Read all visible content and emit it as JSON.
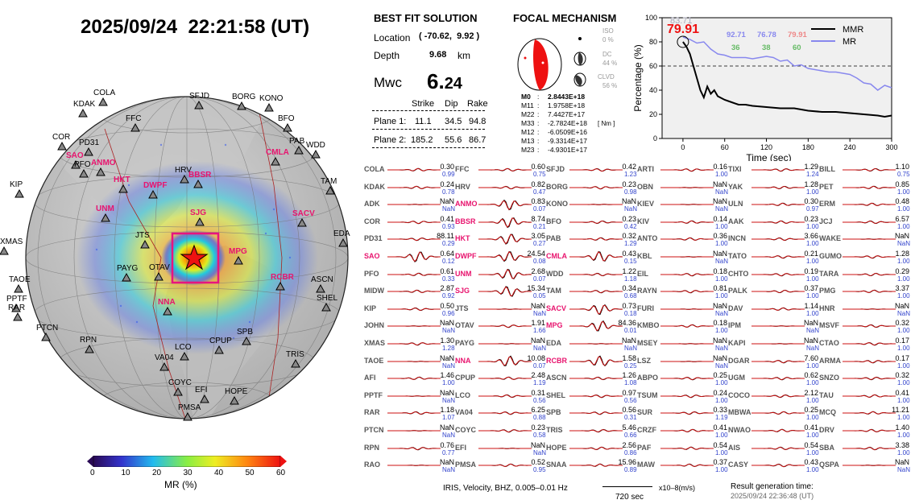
{
  "header": {
    "timestamp": "2025/09/24  22:21:58 (UT)"
  },
  "map": {
    "stations": [
      {
        "code": "COLA",
        "x": 128,
        "y": 128,
        "hi": false
      },
      {
        "code": "KDAK",
        "x": 103,
        "y": 142,
        "hi": false
      },
      {
        "code": "SFJD",
        "x": 247,
        "y": 132,
        "hi": false
      },
      {
        "code": "BORG",
        "x": 300,
        "y": 133,
        "hi": false
      },
      {
        "code": "KONO",
        "x": 334,
        "y": 135,
        "hi": false
      },
      {
        "code": "FFC",
        "x": 168,
        "y": 160,
        "hi": false
      },
      {
        "code": "BFO",
        "x": 357,
        "y": 160,
        "hi": false
      },
      {
        "code": "COR",
        "x": 77,
        "y": 183,
        "hi": false
      },
      {
        "code": "PD31",
        "x": 110,
        "y": 190,
        "hi": false
      },
      {
        "code": "PAB",
        "x": 371,
        "y": 188,
        "hi": false
      },
      {
        "code": "WDD",
        "x": 392,
        "y": 193,
        "hi": false
      },
      {
        "code": "SAO",
        "x": 94,
        "y": 206,
        "hi": true
      },
      {
        "code": "PFO",
        "x": 104,
        "y": 217,
        "hi": false
      },
      {
        "code": "ANMO",
        "x": 125,
        "y": 215,
        "hi": true
      },
      {
        "code": "HRV",
        "x": 229,
        "y": 224,
        "hi": false
      },
      {
        "code": "CMLA",
        "x": 342,
        "y": 202,
        "hi": true
      },
      {
        "code": "HKT",
        "x": 153,
        "y": 236,
        "hi": true
      },
      {
        "code": "BBSR",
        "x": 246,
        "y": 230,
        "hi": true
      },
      {
        "code": "KIP",
        "x": 24,
        "y": 242,
        "hi": false
      },
      {
        "code": "TAM",
        "x": 410,
        "y": 238,
        "hi": false
      },
      {
        "code": "DWPF",
        "x": 190,
        "y": 243,
        "hi": true
      },
      {
        "code": "SJG",
        "x": 248,
        "y": 277,
        "hi": true
      },
      {
        "code": "UNM",
        "x": 131,
        "y": 272,
        "hi": true
      },
      {
        "code": "SACV",
        "x": 375,
        "y": 278,
        "hi": true
      },
      {
        "code": "EDA",
        "x": 426,
        "y": 303,
        "hi": false
      },
      {
        "code": "JTS",
        "x": 180,
        "y": 305,
        "hi": false
      },
      {
        "code": "XMAS",
        "x": 5,
        "y": 313,
        "hi": false
      },
      {
        "code": "MPG",
        "x": 296,
        "y": 325,
        "hi": true
      },
      {
        "code": "PAYG",
        "x": 157,
        "y": 346,
        "hi": false
      },
      {
        "code": "OTAV",
        "x": 197,
        "y": 345,
        "hi": false
      },
      {
        "code": "RCBR",
        "x": 348,
        "y": 357,
        "hi": true
      },
      {
        "code": "TAOE",
        "x": 23,
        "y": 360,
        "hi": false
      },
      {
        "code": "ASCN",
        "x": 398,
        "y": 360,
        "hi": false
      },
      {
        "code": "SHEL",
        "x": 405,
        "y": 383,
        "hi": false
      },
      {
        "code": "PPTF",
        "x": 20,
        "y": 384,
        "hi": false
      },
      {
        "code": "RAR",
        "x": 22,
        "y": 395,
        "hi": false
      },
      {
        "code": "NNA",
        "x": 208,
        "y": 388,
        "hi": true
      },
      {
        "code": "PTCN",
        "x": 57,
        "y": 420,
        "hi": false
      },
      {
        "code": "SPB",
        "x": 306,
        "y": 425,
        "hi": false
      },
      {
        "code": "LCO",
        "x": 229,
        "y": 444,
        "hi": false
      },
      {
        "code": "CPUP",
        "x": 272,
        "y": 436,
        "hi": false
      },
      {
        "code": "RPN",
        "x": 111,
        "y": 435,
        "hi": false
      },
      {
        "code": "TRIS",
        "x": 367,
        "y": 453,
        "hi": false
      },
      {
        "code": "VA04",
        "x": 204,
        "y": 457,
        "hi": false
      },
      {
        "code": "COYC",
        "x": 221,
        "y": 488,
        "hi": false
      },
      {
        "code": "EFI",
        "x": 254,
        "y": 497,
        "hi": false
      },
      {
        "code": "HOPE",
        "x": 291,
        "y": 499,
        "hi": false
      },
      {
        "code": "PMSA",
        "x": 233,
        "y": 519,
        "hi": false
      }
    ],
    "colorbar": {
      "label": "MR (%)",
      "ticks": [
        "0",
        "10",
        "20",
        "30",
        "40",
        "50",
        "60"
      ]
    }
  },
  "solution": {
    "title": "BEST FIT SOLUTION",
    "location_label": "Location",
    "location_value": "( -70.62,  9.92 )",
    "depth_label": "Depth",
    "depth_value": "9.68",
    "depth_unit": "km",
    "mag_label": "Mwc",
    "mag_int": "6.",
    "mag_dec": "24",
    "col_strike": "Strike",
    "col_dip": "Dip",
    "col_rake": "Rake",
    "plane1_label": "Plane 1:",
    "plane1": [
      "11.1",
      "34.5",
      "94.8"
    ],
    "plane2_label": "Plane 2:",
    "plane2": [
      "185.2",
      "55.6",
      "86.7"
    ]
  },
  "focal": {
    "title": "FOCAL MECHANISM",
    "iso_label": "ISO",
    "iso_value": "0 %",
    "dc_label": "DC",
    "dc_value": "44 %",
    "clvd_label": "CLVD",
    "clvd_value": "56 %",
    "moments": [
      {
        "k": "M0",
        "sep": ":",
        "v": "2.8443E+18"
      },
      {
        "k": "M11",
        "sep": ":",
        "v": "1.9758E+18"
      },
      {
        "k": "M22",
        "sep": ":",
        "v": "7.4427E+17"
      },
      {
        "k": "M33",
        "sep": ":",
        "v": "-2.7824E+18"
      },
      {
        "k": "M12",
        "sep": ":",
        "v": "-6.0509E+16"
      },
      {
        "k": "M13",
        "sep": ":",
        "v": "-9.3314E+17"
      },
      {
        "k": "M23",
        "sep": ":",
        "v": "-4.9301E+17"
      }
    ],
    "unit": "[ Nm ]"
  },
  "mr_chart": {
    "ylabel": "Percentage (%)",
    "xlabel": "Time (sec)",
    "xticks": [
      "0",
      "60",
      "120",
      "180",
      "240",
      "300"
    ],
    "yticks": [
      "0",
      "20",
      "40",
      "60",
      "80",
      "100"
    ],
    "legend": [
      {
        "name": "MMR",
        "color": "#000000"
      },
      {
        "name": "MR",
        "color": "#8888ee"
      }
    ],
    "big_value": "79.91",
    "faded_value": "83.71",
    "labels": [
      {
        "top": "92.71",
        "bot": "36",
        "c": "#8888ee"
      },
      {
        "top": "76.78",
        "bot": "38",
        "c": "#8888ee"
      },
      {
        "top": "79.91",
        "bot": "60",
        "c": "#ee8888"
      }
    ]
  },
  "footer": {
    "left": "IRIS, Velocity,  BHZ, 0.005–0.01 Hz",
    "scale": "720 sec",
    "unit": "x10–8(m/s)",
    "result_label": "Result generation time:",
    "result_time": "2025/09/24 22:36:48 (UT)"
  },
  "waveforms": [
    [
      [
        "COLA",
        "0.30",
        "0.99",
        0
      ],
      [
        "KDAK",
        "0.24",
        "0.78",
        0
      ],
      [
        "ADK",
        "NaN",
        "NaN",
        0
      ],
      [
        "COR",
        "0.41",
        "0.93",
        0
      ],
      [
        "PD31",
        "88.11",
        "0.29",
        0
      ],
      [
        "SAO",
        "0.64",
        "0.12",
        1
      ],
      [
        "PFO",
        "0.61",
        "0.33",
        0
      ],
      [
        "MIDW",
        "2.87",
        "0.92",
        0
      ],
      [
        "KIP",
        "0.50",
        "0.96",
        0
      ],
      [
        "JOHN",
        "NaN",
        "NaN",
        0
      ],
      [
        "XMAS",
        "1.30",
        "1.28",
        0
      ],
      [
        "TAOE",
        "NaN",
        "NaN",
        0
      ],
      [
        "AFI",
        "1.46",
        "1.00",
        0
      ],
      [
        "PPTF",
        "NaN",
        "NaN",
        0
      ],
      [
        "RAR",
        "1.18",
        "1.07",
        0
      ],
      [
        "PTCN",
        "NaN",
        "NaN",
        0
      ],
      [
        "RPN",
        "0.76",
        "0.77",
        0
      ],
      [
        "RAO",
        "NaN",
        "NaN",
        0
      ]
    ],
    [
      [
        "FFC",
        "0.60",
        "0.75",
        0
      ],
      [
        "HRV",
        "0.82",
        "0.47",
        0
      ],
      [
        "ANMO",
        "0.83",
        "0.07",
        1
      ],
      [
        "BBSR",
        "8.74",
        "0.21",
        1
      ],
      [
        "HKT",
        "3.05",
        "0.27",
        1
      ],
      [
        "DWPF",
        "24.54",
        "0.08",
        1
      ],
      [
        "UNM",
        "2.68",
        "0.07",
        1
      ],
      [
        "SJG",
        "15.34",
        "0.05",
        1
      ],
      [
        "JTS",
        "NaN",
        "NaN",
        0
      ],
      [
        "OTAV",
        "1.91",
        "1.66",
        0
      ],
      [
        "PAYG",
        "NaN",
        "NaN",
        0
      ],
      [
        "NNA",
        "10.08",
        "0.07",
        1
      ],
      [
        "CPUP",
        "2.48",
        "1.19",
        0
      ],
      [
        "LCO",
        "0.31",
        "0.56",
        0
      ],
      [
        "VA04",
        "6.25",
        "0.88",
        0
      ],
      [
        "COYC",
        "0.23",
        "0.58",
        0
      ],
      [
        "EFI",
        "NaN",
        "NaN",
        0
      ],
      [
        "PMSA",
        "0.52",
        "0.95",
        0
      ]
    ],
    [
      [
        "SFJD",
        "0.42",
        "1.23",
        0
      ],
      [
        "BORG",
        "0.23",
        "0.98",
        0
      ],
      [
        "KONO",
        "NaN",
        "NaN",
        0
      ],
      [
        "BFO",
        "0.23",
        "0.42",
        0
      ],
      [
        "PAB",
        "0.32",
        "1.29",
        0
      ],
      [
        "CMLA",
        "0.43",
        "0.15",
        1
      ],
      [
        "WDD",
        "1.22",
        "1.18",
        0
      ],
      [
        "TAM",
        "0.34",
        "0.68",
        0
      ],
      [
        "SACV",
        "0.73",
        "0.18",
        1
      ],
      [
        "MPG",
        "84.36",
        "0.01",
        1
      ],
      [
        "EDA",
        "NaN",
        "NaN",
        0
      ],
      [
        "RCBR",
        "1.58",
        "0.25",
        1
      ],
      [
        "ASCN",
        "1.26",
        "1.08",
        0
      ],
      [
        "SHEL",
        "0.97",
        "0.56",
        0
      ],
      [
        "SPB",
        "0.56",
        "0.31",
        0
      ],
      [
        "TRIS",
        "5.46",
        "0.66",
        0
      ],
      [
        "HOPE",
        "2.56",
        "0.86",
        0
      ],
      [
        "SNAA",
        "15.96",
        "0.89",
        0
      ]
    ],
    [
      [
        "ARTI",
        "0.16",
        "1.00",
        0
      ],
      [
        "OBN",
        "NaN",
        "NaN",
        0
      ],
      [
        "KIEV",
        "NaN",
        "NaN",
        0
      ],
      [
        "KIV",
        "0.14",
        "1.00",
        0
      ],
      [
        "ANTO",
        "0.36",
        "1.00",
        0
      ],
      [
        "KBL",
        "NaN",
        "NaN",
        0
      ],
      [
        "EIL",
        "0.18",
        "1.00",
        0
      ],
      [
        "RAYN",
        "0.81",
        "1.00",
        0
      ],
      [
        "FURI",
        "NaN",
        "NaN",
        0
      ],
      [
        "KMBO",
        "0.18",
        "1.00",
        0
      ],
      [
        "MSEY",
        "NaN",
        "NaN",
        0
      ],
      [
        "LSZ",
        "NaN",
        "NaN",
        0
      ],
      [
        "ABPO",
        "0.25",
        "1.00",
        0
      ],
      [
        "TSUM",
        "0.24",
        "1.00",
        0
      ],
      [
        "SUR",
        "0.33",
        "1.19",
        0
      ],
      [
        "CRZF",
        "0.41",
        "1.00",
        0
      ],
      [
        "PAF",
        "0.54",
        "1.00",
        0
      ],
      [
        "MAW",
        "0.37",
        "1.00",
        0
      ]
    ],
    [
      [
        "TIXI",
        "1.29",
        "1.24",
        0
      ],
      [
        "YAK",
        "1.28",
        "1.00",
        0
      ],
      [
        "ULN",
        "0.30",
        "0.97",
        0
      ],
      [
        "AAK",
        "0.23",
        "1.00",
        0
      ],
      [
        "INCN",
        "3.66",
        "1.00",
        0
      ],
      [
        "TATO",
        "0.21",
        "1.00",
        0
      ],
      [
        "CHTO",
        "0.19",
        "1.00",
        0
      ],
      [
        "PALK",
        "0.37",
        "1.00",
        0
      ],
      [
        "DAV",
        "1.14",
        "1.00",
        0
      ],
      [
        "IPM",
        "NaN",
        "NaN",
        0
      ],
      [
        "KAPI",
        "NaN",
        "NaN",
        0
      ],
      [
        "DGAR",
        "7.60",
        "1.00",
        0
      ],
      [
        "UGM",
        "0.62",
        "1.00",
        0
      ],
      [
        "COCO",
        "2.12",
        "1.00",
        0
      ],
      [
        "MBWA",
        "0.25",
        "1.00",
        0
      ],
      [
        "NWAO",
        "0.41",
        "1.00",
        0
      ],
      [
        "AIS",
        "0.54",
        "1.00",
        0
      ],
      [
        "CASY",
        "0.43",
        "1.00",
        0
      ]
    ],
    [
      [
        "BILL",
        "1.10",
        "0.75",
        0
      ],
      [
        "PET",
        "0.85",
        "1.00",
        0
      ],
      [
        "ERM",
        "0.48",
        "1.00",
        0
      ],
      [
        "JCJ",
        "6.57",
        "1.00",
        0
      ],
      [
        "WAKE",
        "NaN",
        "NaN",
        0
      ],
      [
        "GUMO",
        "1.28",
        "1.00",
        0
      ],
      [
        "TARA",
        "0.29",
        "1.00",
        0
      ],
      [
        "PMG",
        "3.37",
        "1.00",
        0
      ],
      [
        "HNR",
        "NaN",
        "NaN",
        0
      ],
      [
        "MSVF",
        "0.32",
        "1.00",
        0
      ],
      [
        "CTAO",
        "0.17",
        "1.00",
        0
      ],
      [
        "ARMA",
        "0.17",
        "1.00",
        0
      ],
      [
        "SNZO",
        "0.32",
        "1.00",
        0
      ],
      [
        "TAU",
        "0.41",
        "1.00",
        0
      ],
      [
        "MCQ",
        "11.21",
        "1.00",
        0
      ],
      [
        "DRV",
        "1.40",
        "1.00",
        0
      ],
      [
        "SBA",
        "3.38",
        "1.00",
        0
      ],
      [
        "QSPA",
        "NaN",
        "NaN",
        0
      ]
    ]
  ]
}
